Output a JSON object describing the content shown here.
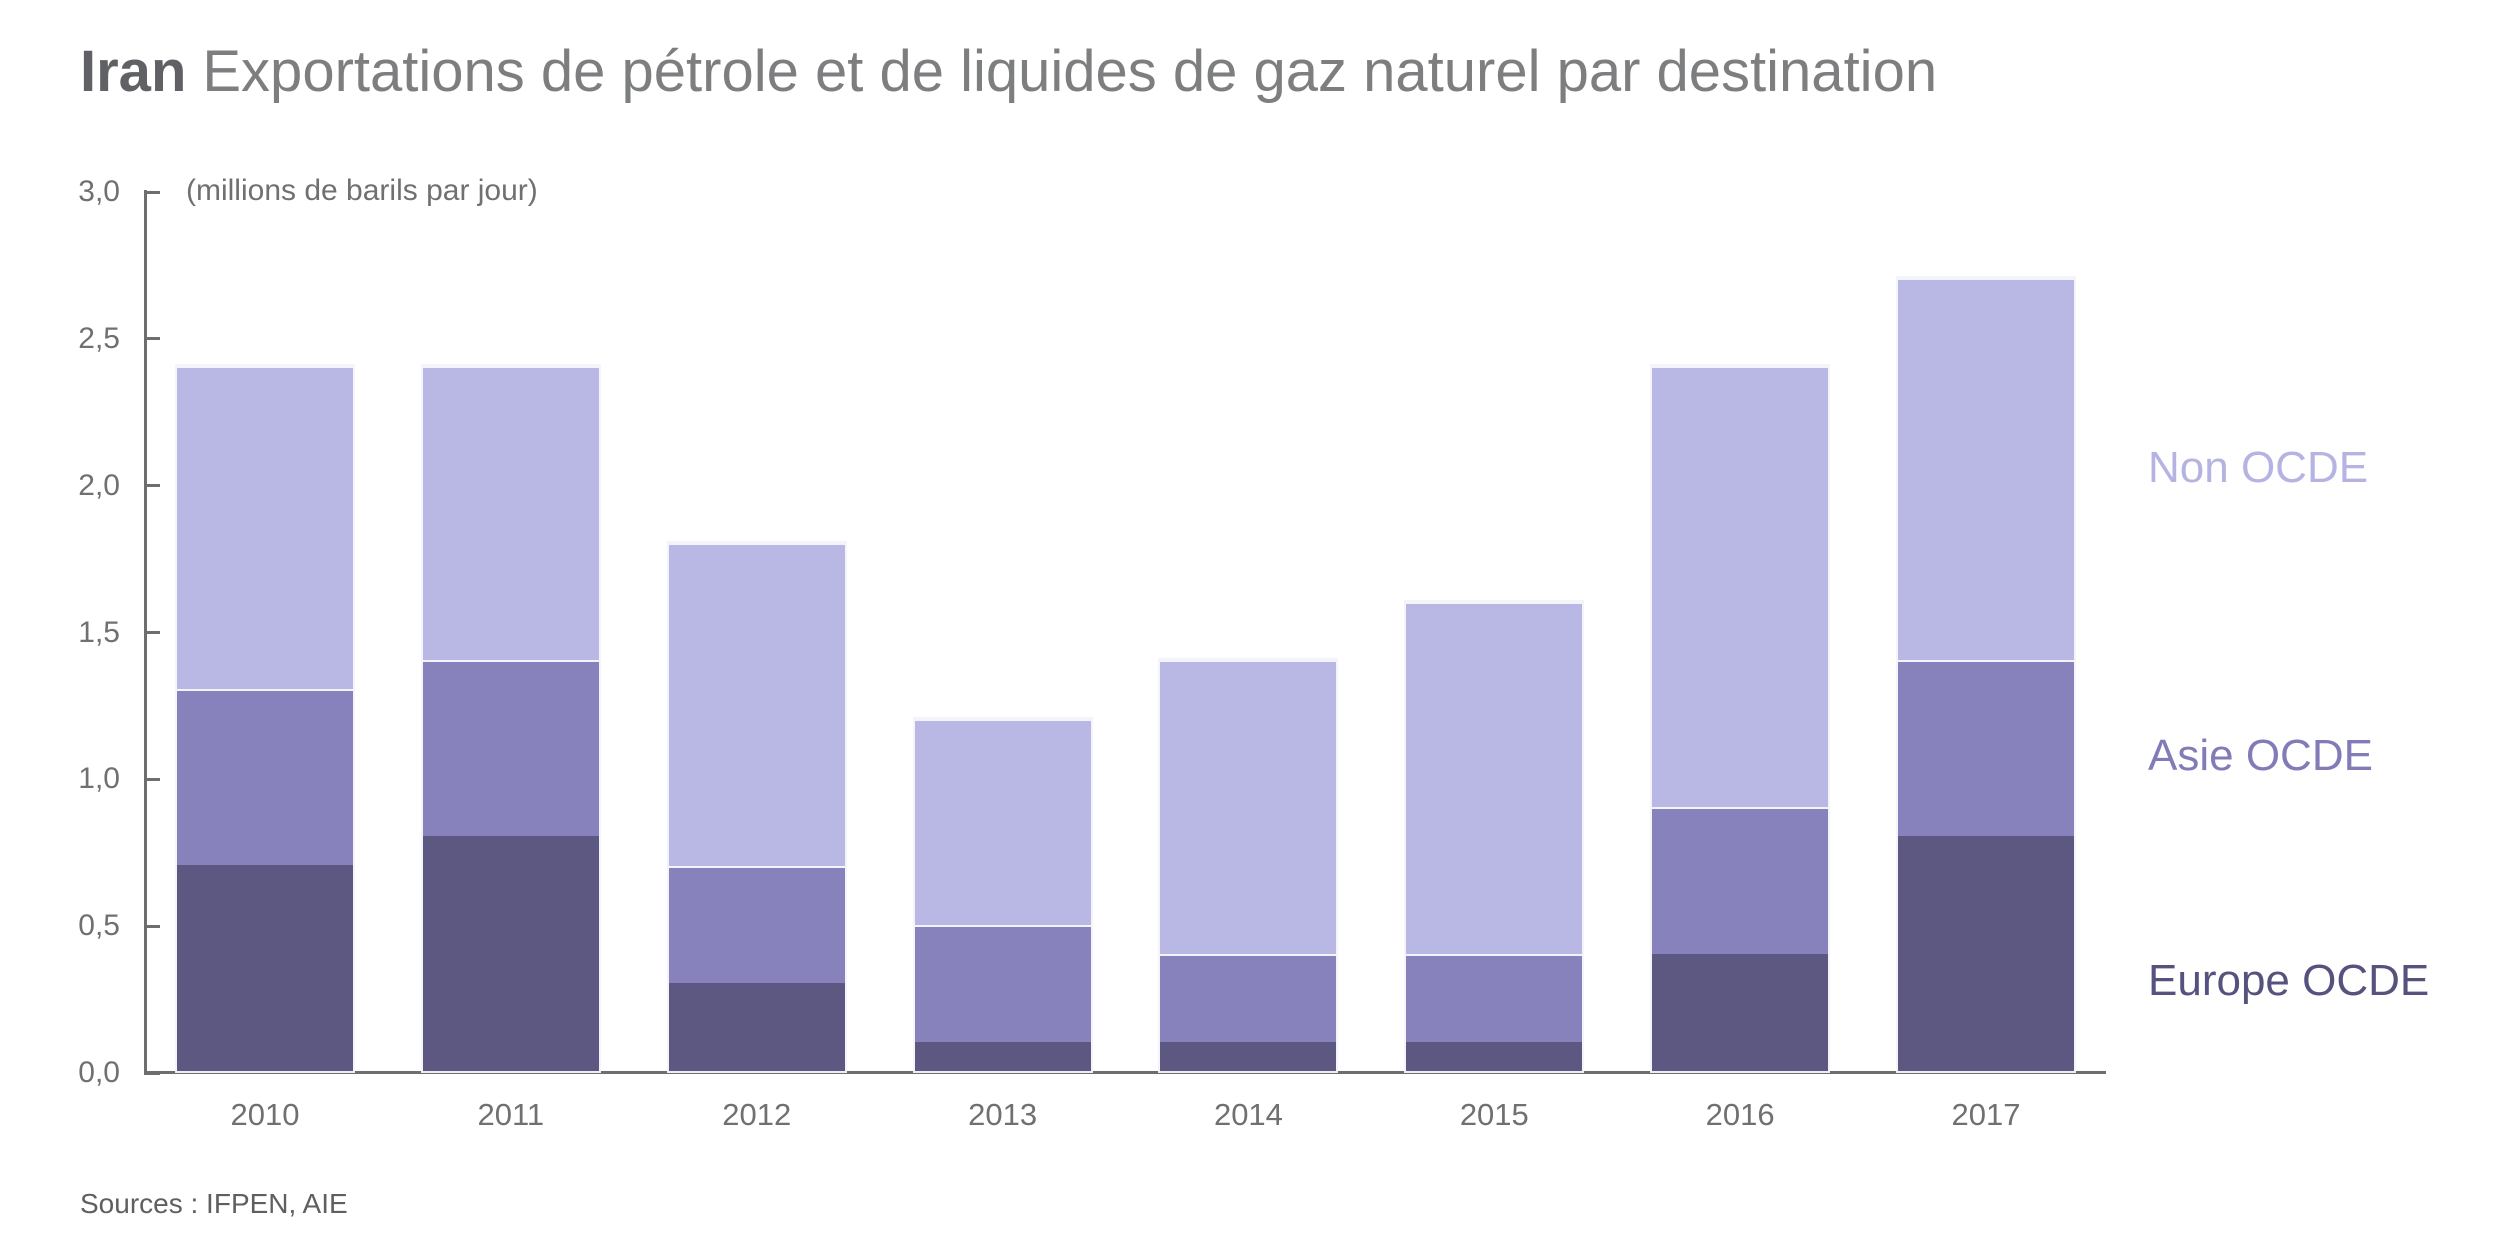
{
  "chart_data": {
    "type": "bar",
    "stacked": true,
    "title_bold": "Iran",
    "title_rest": "Exportations de pétrole et de liquides de gaz naturel par destination",
    "unit_label": "(millions de barils par jour)",
    "categories": [
      "2010",
      "2011",
      "2012",
      "2013",
      "2014",
      "2015",
      "2016",
      "2017"
    ],
    "series": [
      {
        "name": "Europe OCDE",
        "color": "#5c5882",
        "label_color": "#56527e",
        "values": [
          0.7,
          0.8,
          0.3,
          0.1,
          0.1,
          0.1,
          0.4,
          0.8
        ]
      },
      {
        "name": "Asie OCDE",
        "color": "#8781bc",
        "label_color": "#817cb7",
        "values": [
          0.6,
          0.6,
          0.4,
          0.4,
          0.3,
          0.3,
          0.5,
          0.6
        ]
      },
      {
        "name": "Non OCDE",
        "color": "#b9b7e3",
        "label_color": "#b5b3e1",
        "values": [
          1.1,
          1.0,
          1.1,
          0.7,
          1.0,
          1.2,
          1.5,
          1.3
        ]
      }
    ],
    "totals": [
      2.4,
      2.4,
      1.8,
      1.2,
      1.4,
      1.6,
      2.4,
      2.7
    ],
    "y_ticks": [
      "0,0",
      "0,5",
      "1,0",
      "1,5",
      "2,0",
      "2,5",
      "3,0"
    ],
    "ylim": [
      0,
      3
    ],
    "grid": false,
    "legend_position": "right",
    "axis_color": "#6e6e6e",
    "tick_text_color": "#6f7072",
    "sources": "Sources : IFPEN, AIE"
  }
}
